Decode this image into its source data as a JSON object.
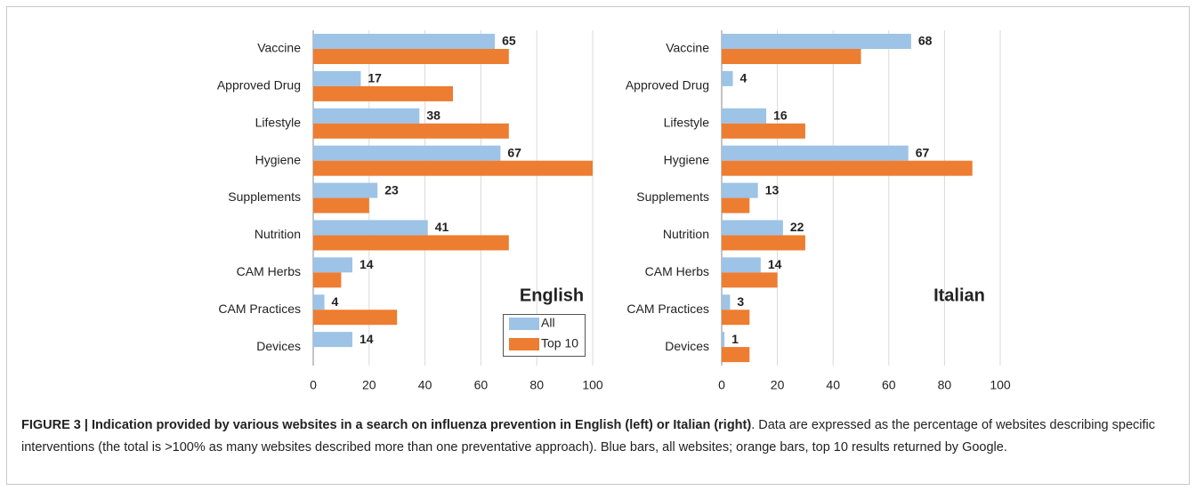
{
  "chart_data": [
    {
      "type": "hbar",
      "annotation": "English",
      "legend": "bottom-right",
      "categories": [
        "Vaccine",
        "Approved Drug",
        "Lifestyle",
        "Hygiene",
        "Supplements",
        "Nutrition",
        "CAM Herbs",
        "CAM Practices",
        "Devices"
      ],
      "series": [
        {
          "name": "All",
          "color": "#9dc3e6",
          "labels": true,
          "values": [
            65,
            17,
            38,
            67,
            23,
            41,
            14,
            4,
            14
          ]
        },
        {
          "name": "Top 10",
          "color": "#ed7d31",
          "values": [
            70,
            50,
            70,
            100,
            20,
            70,
            10,
            30,
            0
          ]
        }
      ],
      "xlim": [
        0,
        100
      ],
      "xticks": [
        0,
        20,
        40,
        60,
        80,
        100
      ],
      "grid": true
    },
    {
      "type": "hbar",
      "annotation": "Italian",
      "categories": [
        "Vaccine",
        "Approved Drug",
        "Lifestyle",
        "Hygiene",
        "Supplements",
        "Nutrition",
        "CAM Herbs",
        "CAM Practices",
        "Devices"
      ],
      "series": [
        {
          "color": "#9dc3e6",
          "labels": true,
          "values": [
            68,
            4,
            16,
            67,
            13,
            22,
            14,
            3,
            1
          ]
        },
        {
          "color": "#ed7d31",
          "values": [
            50,
            0,
            30,
            90,
            10,
            30,
            20,
            10,
            10
          ]
        }
      ],
      "xlim": [
        0,
        100
      ],
      "xticks": [
        0,
        20,
        40,
        60,
        80,
        100
      ],
      "grid": true
    }
  ],
  "caption": {
    "title": "FIGURE 3 | Indication provided by various websites in a search on influenza prevention in English (left) or Italian (right)",
    "text": ". Data are expressed as the percentage of websites describing specific interventions (the total is >100% as many websites described more than one preventative approach). Blue bars, all websites; orange bars, top 10 results returned by Google."
  }
}
